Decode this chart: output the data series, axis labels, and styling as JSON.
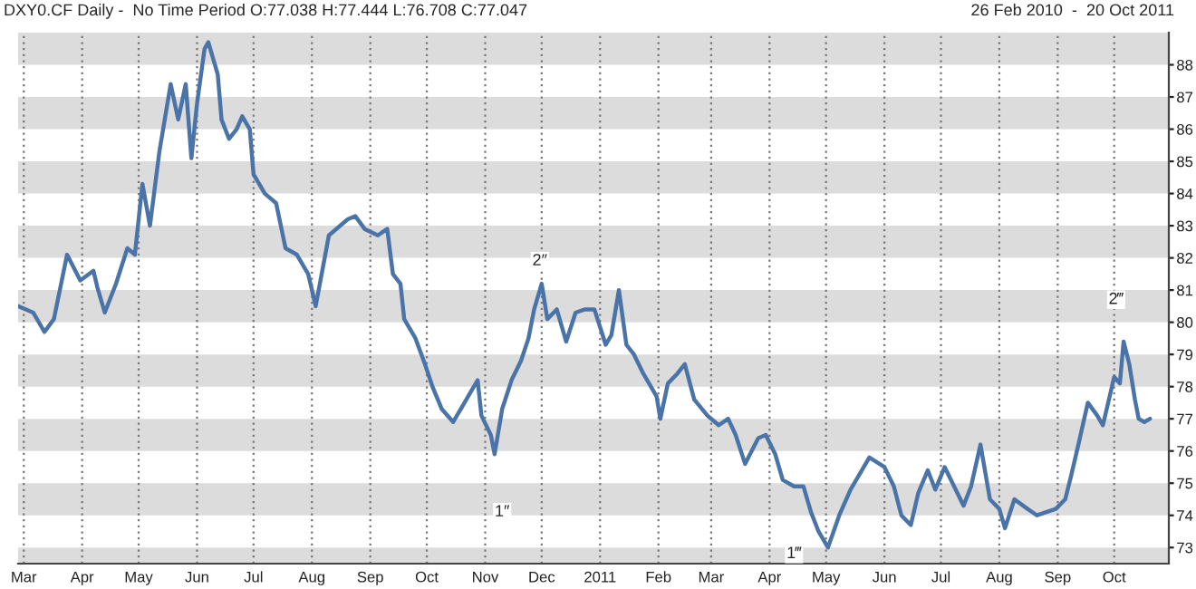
{
  "chart_data": {
    "type": "line",
    "title": "DXY0.CF Daily -  No Time Period O:77.038 H:77.444 L:76.708 C:77.047",
    "subtitle": "26 Feb 2010  -  20 Oct 2011",
    "x": [
      "2010-02-26",
      "2010-03-06",
      "2010-03-12",
      "2010-03-17",
      "2010-03-24",
      "2010-03-31",
      "2010-04-07",
      "2010-04-09",
      "2010-04-13",
      "2010-04-19",
      "2010-04-25",
      "2010-04-29",
      "2010-05-03",
      "2010-05-07",
      "2010-05-12",
      "2010-05-18",
      "2010-05-22",
      "2010-05-26",
      "2010-05-29",
      "2010-06-01",
      "2010-06-05",
      "2010-06-07",
      "2010-06-12",
      "2010-06-14",
      "2010-06-18",
      "2010-06-22",
      "2010-06-25",
      "2010-06-29",
      "2010-07-01",
      "2010-07-07",
      "2010-07-13",
      "2010-07-18",
      "2010-07-24",
      "2010-07-30",
      "2010-08-03",
      "2010-08-10",
      "2010-08-20",
      "2010-08-24",
      "2010-08-29",
      "2010-09-05",
      "2010-09-10",
      "2010-09-13",
      "2010-09-17",
      "2010-09-19",
      "2010-09-25",
      "2010-09-30",
      "2010-10-04",
      "2010-10-09",
      "2010-10-15",
      "2010-10-19",
      "2010-10-25",
      "2010-10-28",
      "2010-10-30",
      "2010-11-04",
      "2010-11-06",
      "2010-11-10",
      "2010-11-15",
      "2010-11-20",
      "2010-11-24",
      "2010-11-27",
      "2010-12-01",
      "2010-12-04",
      "2010-12-09",
      "2010-12-14",
      "2010-12-19",
      "2010-12-24",
      "2010-12-29",
      "2011-01-04",
      "2011-01-07",
      "2011-01-11",
      "2011-01-15",
      "2011-01-19",
      "2011-01-24",
      "2011-01-31",
      "2011-02-02",
      "2011-02-06",
      "2011-02-11",
      "2011-02-15",
      "2011-02-20",
      "2011-02-27",
      "2011-03-05",
      "2011-03-10",
      "2011-03-14",
      "2011-03-19",
      "2011-03-26",
      "2011-03-30",
      "2011-04-04",
      "2011-04-08",
      "2011-04-14",
      "2011-04-19",
      "2011-04-23",
      "2011-04-27",
      "2011-05-02",
      "2011-05-08",
      "2011-05-14",
      "2011-05-24",
      "2011-06-01",
      "2011-06-06",
      "2011-06-10",
      "2011-06-15",
      "2011-06-19",
      "2011-06-24",
      "2011-06-28",
      "2011-07-03",
      "2011-07-08",
      "2011-07-13",
      "2011-07-17",
      "2011-07-22",
      "2011-07-27",
      "2011-08-01",
      "2011-08-04",
      "2011-08-09",
      "2011-08-16",
      "2011-08-21",
      "2011-08-26",
      "2011-08-31",
      "2011-09-05",
      "2011-09-08",
      "2011-09-12",
      "2011-09-17",
      "2011-09-22",
      "2011-09-25",
      "2011-10-01",
      "2011-10-04",
      "2011-10-06",
      "2011-10-09",
      "2011-10-12",
      "2011-10-14",
      "2011-10-17",
      "2011-10-20"
    ],
    "series": [
      {
        "color": "#4a74a8",
        "values": [
          80.5,
          80.3,
          79.7,
          80.1,
          82.1,
          81.3,
          81.6,
          81.1,
          80.3,
          81.2,
          82.3,
          82.1,
          84.3,
          83.0,
          85.3,
          87.4,
          86.3,
          87.4,
          85.1,
          86.8,
          88.5,
          88.7,
          87.7,
          86.3,
          85.7,
          86.0,
          86.4,
          86.0,
          84.6,
          84.0,
          83.7,
          82.3,
          82.1,
          81.5,
          80.5,
          82.7,
          83.2,
          83.3,
          82.9,
          82.7,
          82.9,
          81.5,
          81.2,
          80.1,
          79.5,
          78.7,
          78.0,
          77.3,
          76.9,
          77.3,
          77.9,
          78.2,
          77.1,
          76.5,
          75.9,
          77.3,
          78.2,
          78.8,
          79.5,
          80.4,
          81.2,
          80.1,
          80.4,
          79.4,
          80.3,
          80.4,
          80.4,
          79.3,
          79.6,
          81.0,
          79.3,
          79.0,
          78.4,
          77.7,
          77.0,
          78.1,
          78.4,
          78.7,
          77.6,
          77.1,
          76.8,
          77.0,
          76.5,
          75.6,
          76.4,
          76.5,
          75.9,
          75.1,
          74.9,
          74.9,
          74.1,
          73.5,
          73.0,
          74.0,
          74.8,
          75.8,
          75.5,
          74.9,
          74.0,
          73.7,
          74.7,
          75.4,
          74.8,
          75.5,
          74.9,
          74.3,
          74.9,
          76.2,
          74.5,
          74.2,
          73.6,
          74.5,
          74.2,
          74.0,
          74.1,
          74.2,
          74.5,
          75.2,
          76.2,
          77.5,
          77.1,
          76.8,
          78.3,
          78.1,
          79.4,
          78.7,
          77.6,
          77.0,
          76.9,
          77.0
        ]
      }
    ],
    "xlim": [
      "2010-02-26",
      "2011-10-30"
    ],
    "xticks": [
      {
        "value": "2010-03-01",
        "label": "Mar"
      },
      {
        "value": "2010-04-01",
        "label": "Apr"
      },
      {
        "value": "2010-05-01",
        "label": "May"
      },
      {
        "value": "2010-06-01",
        "label": "Jun"
      },
      {
        "value": "2010-07-01",
        "label": "Jul"
      },
      {
        "value": "2010-08-01",
        "label": "Aug"
      },
      {
        "value": "2010-09-01",
        "label": "Sep"
      },
      {
        "value": "2010-10-01",
        "label": "Oct"
      },
      {
        "value": "2010-11-01",
        "label": "Nov"
      },
      {
        "value": "2010-12-01",
        "label": "Dec"
      },
      {
        "value": "2011-01-01",
        "label": "2011"
      },
      {
        "value": "2011-02-01",
        "label": "Feb"
      },
      {
        "value": "2011-03-01",
        "label": "Mar"
      },
      {
        "value": "2011-04-01",
        "label": "Apr"
      },
      {
        "value": "2011-05-01",
        "label": "May"
      },
      {
        "value": "2011-06-01",
        "label": "Jun"
      },
      {
        "value": "2011-07-01",
        "label": "Jul"
      },
      {
        "value": "2011-08-01",
        "label": "Aug"
      },
      {
        "value": "2011-09-01",
        "label": "Sep"
      },
      {
        "value": "2011-10-01",
        "label": "Oct"
      }
    ],
    "ylim": [
      72.5,
      89
    ],
    "yticks": [
      73,
      74,
      75,
      76,
      77,
      78,
      79,
      80,
      81,
      82,
      83,
      84,
      85,
      86,
      87,
      88
    ],
    "bands": [
      {
        "axis": "y",
        "from": 72.5,
        "to": 73,
        "color": "#dcdcdc"
      },
      {
        "axis": "y",
        "from": 74,
        "to": 75,
        "color": "#dcdcdc"
      },
      {
        "axis": "y",
        "from": 76,
        "to": 77,
        "color": "#dcdcdc"
      },
      {
        "axis": "y",
        "from": 78,
        "to": 79,
        "color": "#dcdcdc"
      },
      {
        "axis": "y",
        "from": 80,
        "to": 81,
        "color": "#dcdcdc"
      },
      {
        "axis": "y",
        "from": 82,
        "to": 83,
        "color": "#dcdcdc"
      },
      {
        "axis": "y",
        "from": 84,
        "to": 85,
        "color": "#dcdcdc"
      },
      {
        "axis": "y",
        "from": 86,
        "to": 87,
        "color": "#dcdcdc"
      },
      {
        "axis": "y",
        "from": 88,
        "to": 89,
        "color": "#dcdcdc"
      }
    ],
    "annotations": [
      {
        "text": "2″",
        "x": "2010-11-30",
        "y": 81.9
      },
      {
        "text": "1″",
        "x": "2010-11-10",
        "y": 74.1
      },
      {
        "text": "1‴",
        "x": "2011-04-14",
        "y": 72.8
      },
      {
        "text": "2‴",
        "x": "2011-10-02",
        "y": 80.7
      }
    ],
    "grid": "x",
    "legend": false,
    "marker": "none",
    "line_style": "solid"
  }
}
